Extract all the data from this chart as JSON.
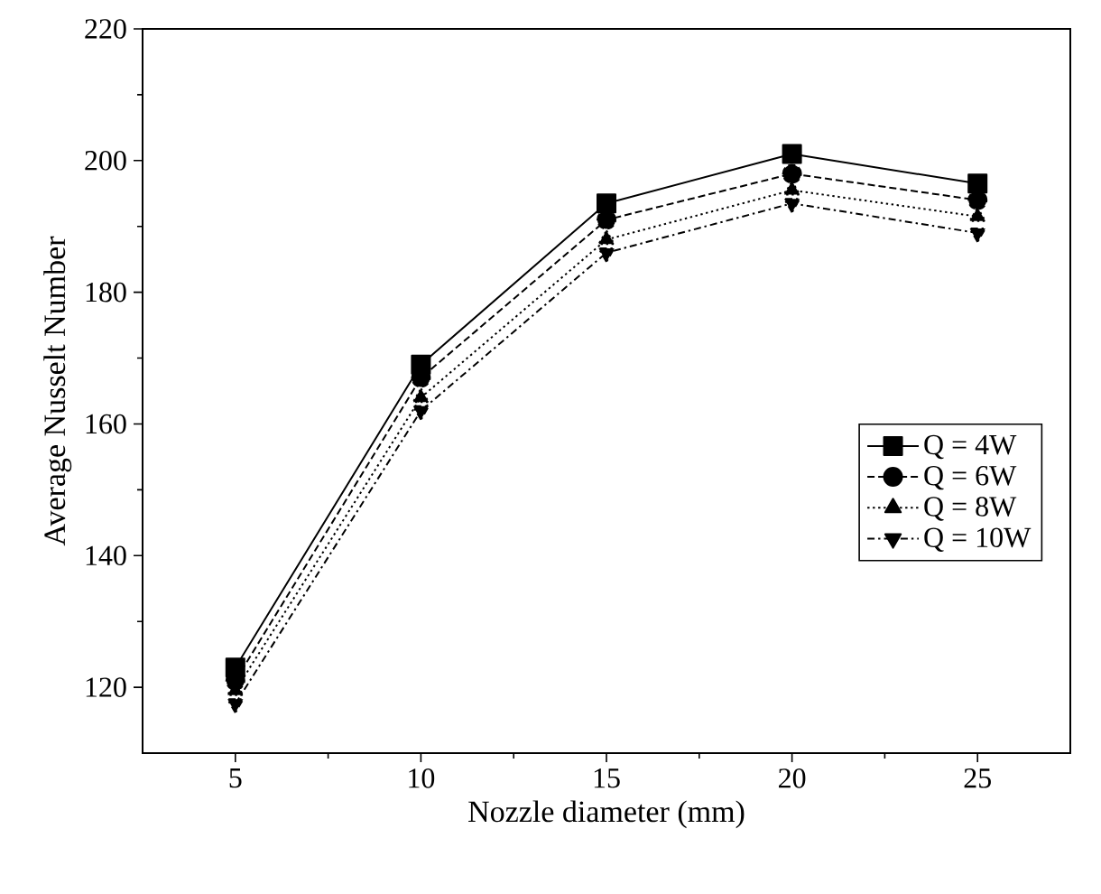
{
  "chart_data": {
    "type": "line",
    "xlabel": "Nozzle diameter (mm)",
    "ylabel": "Average Nusselt Number",
    "x": [
      5,
      10,
      15,
      20,
      25
    ],
    "series": [
      {
        "name": "Q = 4W",
        "color": "#000000",
        "marker": "square",
        "line_style": "solid",
        "values": [
          123,
          169,
          193.5,
          201,
          196.5
        ]
      },
      {
        "name": "Q = 6W",
        "color": "#000000",
        "marker": "circle",
        "line_style": "dashed",
        "values": [
          121,
          167,
          191,
          198,
          194
        ]
      },
      {
        "name": "Q = 8W",
        "color": "#000000",
        "marker": "triangle",
        "line_style": "dotted",
        "values": [
          119.5,
          164,
          188,
          195.5,
          191.5
        ]
      },
      {
        "name": "Q = 10W",
        "color": "#000000",
        "marker": "triangle-down",
        "line_style": "dashdot",
        "values": [
          117.5,
          162,
          186,
          193.5,
          189
        ]
      }
    ],
    "xlim": [
      2.5,
      27.5
    ],
    "ylim": [
      110,
      220
    ],
    "xticks": [
      5,
      10,
      15,
      20,
      25
    ],
    "yticks": [
      120,
      140,
      160,
      180,
      200,
      220
    ],
    "grid": false,
    "legend": "right"
  }
}
